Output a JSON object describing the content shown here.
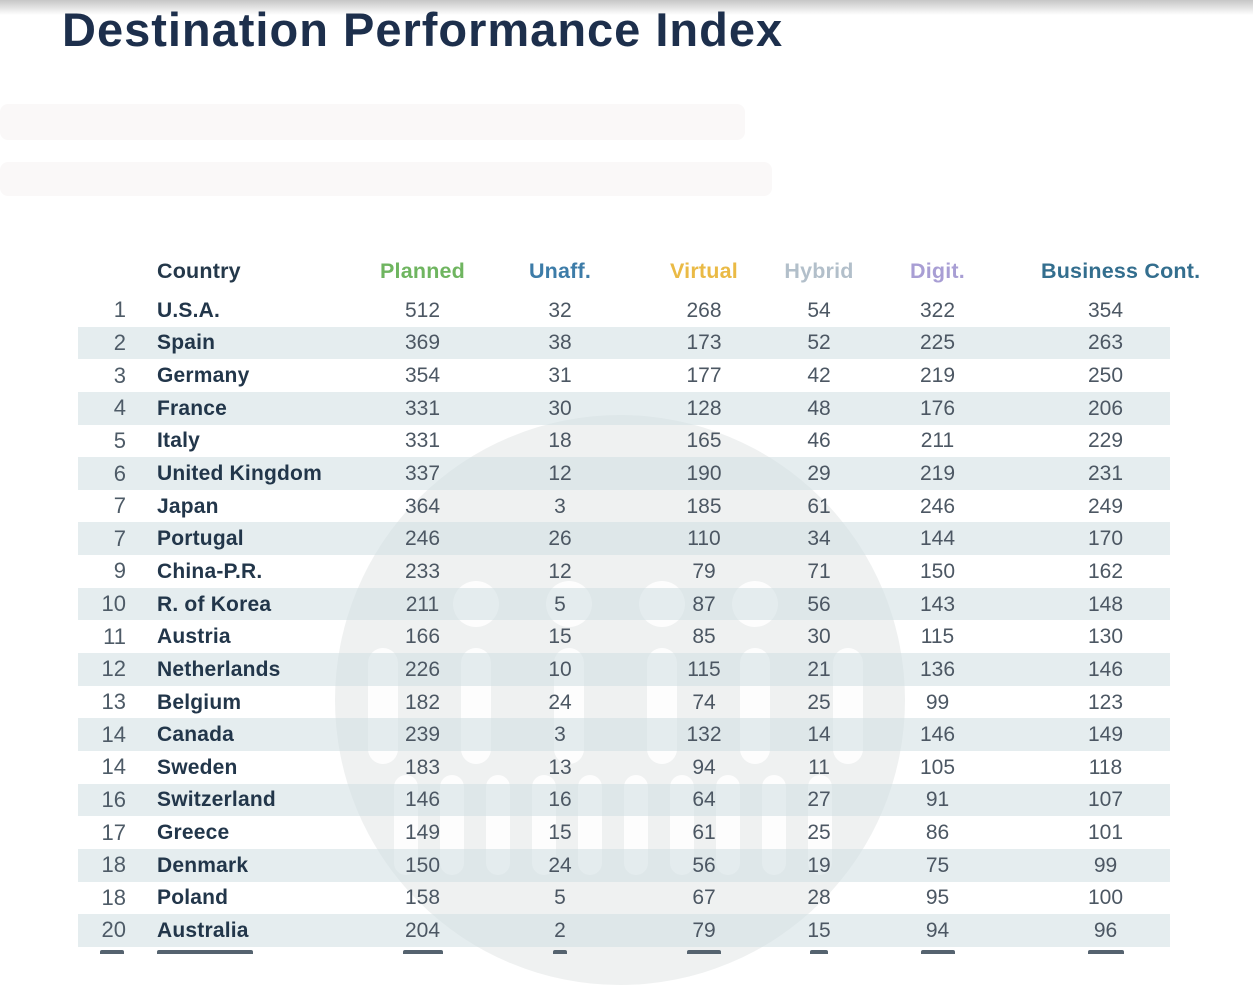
{
  "page": {
    "title": "Destination Performance Index"
  },
  "colors": {
    "title": "#1d2f4c",
    "row_stripe": "#e7eeef",
    "rank_text": "#4e5b67",
    "country_text": "#22364a",
    "value_text": "#4c5763"
  },
  "icons": {
    "watermark": "circular-pillars-logo-watermark"
  },
  "chart_data": {
    "type": "table",
    "title": "Destination Performance Index",
    "columns": [
      {
        "key": "rank",
        "label": "",
        "color": "#4e5b67"
      },
      {
        "key": "country",
        "label": "Country",
        "color": "#24384a"
      },
      {
        "key": "planned",
        "label": "Planned",
        "color": "#6fb560"
      },
      {
        "key": "unaff",
        "label": "Unaff.",
        "color": "#3d7ca8"
      },
      {
        "key": "virtual",
        "label": "Virtual",
        "color": "#eaba45"
      },
      {
        "key": "hybrid",
        "label": "Hybrid",
        "color": "#b2bfca"
      },
      {
        "key": "digit",
        "label": "Digit.",
        "color": "#a89ed4"
      },
      {
        "key": "business",
        "label": "Business Cont.",
        "color": "#336e8e"
      }
    ],
    "rows": [
      {
        "rank": 1,
        "country": "U.S.A.",
        "planned": 512,
        "unaff": 32,
        "virtual": 268,
        "hybrid": 54,
        "digit": 322,
        "business": 354
      },
      {
        "rank": 2,
        "country": "Spain",
        "planned": 369,
        "unaff": 38,
        "virtual": 173,
        "hybrid": 52,
        "digit": 225,
        "business": 263
      },
      {
        "rank": 3,
        "country": "Germany",
        "planned": 354,
        "unaff": 31,
        "virtual": 177,
        "hybrid": 42,
        "digit": 219,
        "business": 250
      },
      {
        "rank": 4,
        "country": "France",
        "planned": 331,
        "unaff": 30,
        "virtual": 128,
        "hybrid": 48,
        "digit": 176,
        "business": 206
      },
      {
        "rank": 5,
        "country": "Italy",
        "planned": 331,
        "unaff": 18,
        "virtual": 165,
        "hybrid": 46,
        "digit": 211,
        "business": 229
      },
      {
        "rank": 6,
        "country": "United Kingdom",
        "planned": 337,
        "unaff": 12,
        "virtual": 190,
        "hybrid": 29,
        "digit": 219,
        "business": 231
      },
      {
        "rank": 7,
        "country": "Japan",
        "planned": 364,
        "unaff": 3,
        "virtual": 185,
        "hybrid": 61,
        "digit": 246,
        "business": 249
      },
      {
        "rank": 7,
        "country": "Portugal",
        "planned": 246,
        "unaff": 26,
        "virtual": 110,
        "hybrid": 34,
        "digit": 144,
        "business": 170
      },
      {
        "rank": 9,
        "country": "China-P.R.",
        "planned": 233,
        "unaff": 12,
        "virtual": 79,
        "hybrid": 71,
        "digit": 150,
        "business": 162
      },
      {
        "rank": 10,
        "country": "R. of Korea",
        "planned": 211,
        "unaff": 5,
        "virtual": 87,
        "hybrid": 56,
        "digit": 143,
        "business": 148
      },
      {
        "rank": 11,
        "country": "Austria",
        "planned": 166,
        "unaff": 15,
        "virtual": 85,
        "hybrid": 30,
        "digit": 115,
        "business": 130
      },
      {
        "rank": 12,
        "country": "Netherlands",
        "planned": 226,
        "unaff": 10,
        "virtual": 115,
        "hybrid": 21,
        "digit": 136,
        "business": 146
      },
      {
        "rank": 13,
        "country": "Belgium",
        "planned": 182,
        "unaff": 24,
        "virtual": 74,
        "hybrid": 25,
        "digit": 99,
        "business": 123
      },
      {
        "rank": 14,
        "country": "Canada",
        "planned": 239,
        "unaff": 3,
        "virtual": 132,
        "hybrid": 14,
        "digit": 146,
        "business": 149
      },
      {
        "rank": 14,
        "country": "Sweden",
        "planned": 183,
        "unaff": 13,
        "virtual": 94,
        "hybrid": 11,
        "digit": 105,
        "business": 118
      },
      {
        "rank": 16,
        "country": "Switzerland",
        "planned": 146,
        "unaff": 16,
        "virtual": 64,
        "hybrid": 27,
        "digit": 91,
        "business": 107
      },
      {
        "rank": 17,
        "country": "Greece",
        "planned": 149,
        "unaff": 15,
        "virtual": 61,
        "hybrid": 25,
        "digit": 86,
        "business": 101
      },
      {
        "rank": 18,
        "country": "Denmark",
        "planned": 150,
        "unaff": 24,
        "virtual": 56,
        "hybrid": 19,
        "digit": 75,
        "business": 99
      },
      {
        "rank": 18,
        "country": "Poland",
        "planned": 158,
        "unaff": 5,
        "virtual": 67,
        "hybrid": 28,
        "digit": 95,
        "business": 100
      },
      {
        "rank": 20,
        "country": "Australia",
        "planned": 204,
        "unaff": 2,
        "virtual": 79,
        "hybrid": 15,
        "digit": 94,
        "business": 96
      }
    ]
  }
}
